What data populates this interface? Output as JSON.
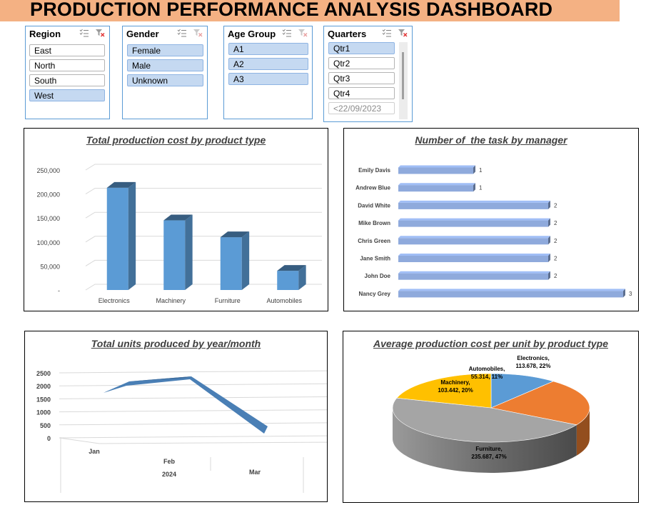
{
  "dashboard": {
    "title": "PRODUCTION PERFORMANCE ANALYSIS DASHBOARD"
  },
  "slicers": {
    "region": {
      "label": "Region",
      "items": [
        "East",
        "North",
        "South",
        "West"
      ],
      "selected": [
        "West"
      ]
    },
    "gender": {
      "label": "Gender",
      "items": [
        "Female",
        "Male",
        "Unknown"
      ],
      "selected": [
        "Female",
        "Male",
        "Unknown"
      ]
    },
    "age_group": {
      "label": "Age Group",
      "items": [
        "A1",
        "A2",
        "A3"
      ],
      "selected": [
        "A1",
        "A2",
        "A3"
      ]
    },
    "quarters": {
      "label": "Quarters",
      "items": [
        "Qtr1",
        "Qtr2",
        "Qtr3",
        "Qtr4",
        "<22/09/2023"
      ],
      "selected": [
        "Qtr1"
      ]
    }
  },
  "colors": {
    "accent": "#5b9bd5",
    "title_bar": "#f4b183",
    "orange": "#ed7d31",
    "gray": "#a5a5a5",
    "gold": "#ffc000",
    "bar_light": "#8faadc"
  },
  "chart_data": [
    {
      "type": "bar",
      "title": "Total production cost by product type",
      "categories": [
        "Electronics",
        "Machinery",
        "Furniture",
        "Automobiles"
      ],
      "values": [
        213000,
        145000,
        110000,
        40000
      ],
      "yticks": [
        "-",
        "50,000",
        "100,000",
        "150,000",
        "200,000",
        "250,000"
      ],
      "ylim": [
        0,
        250000
      ],
      "grid": true,
      "legend": "none"
    },
    {
      "type": "bar",
      "title": "Number of  the task by manager",
      "categories": [
        "Emily Davis",
        "Andrew Blue",
        "David White",
        "Mike Brown",
        "Chris Green",
        "Jane Smith",
        "John Doe",
        "Nancy Grey"
      ],
      "values": [
        1,
        1,
        2,
        2,
        2,
        2,
        2,
        3
      ],
      "orientation": "horizontal",
      "data_labels": true,
      "legend": "none"
    },
    {
      "type": "line",
      "title": "Total units produced by year/month",
      "categories": [
        "Jan",
        "Feb",
        "Mar"
      ],
      "year_label": "2024",
      "values": [
        1800,
        2250,
        350
      ],
      "yticks": [
        "0",
        "500",
        "1000",
        "1500",
        "2000",
        "2500"
      ],
      "ylim": [
        0,
        2500
      ],
      "grid": true,
      "legend": "none"
    },
    {
      "type": "pie",
      "title": "Average production cost per unit by product type",
      "slices": [
        {
          "name": "Electronics",
          "value": 113.678,
          "percent": "22%",
          "color": "#5b9bd5"
        },
        {
          "name": "Automobiles",
          "value": 55.314,
          "percent": "11%",
          "color": "#ed7d31"
        },
        {
          "name": "Furniture",
          "value": 235.687,
          "percent": "47%",
          "color": "#a5a5a5"
        },
        {
          "name": "Machinery",
          "value": 103.442,
          "percent": "20%",
          "color": "#ffc000"
        }
      ],
      "labels": [
        {
          "line1": "Electronics,",
          "line2": "113.678, 22%"
        },
        {
          "line1": "Automobiles,",
          "line2": "55.314, 11%"
        },
        {
          "line1": "Furniture,",
          "line2": "235.687, 47%"
        },
        {
          "line1": "Machinery,",
          "line2": "103.442, 20%"
        }
      ],
      "legend": "none"
    }
  ]
}
